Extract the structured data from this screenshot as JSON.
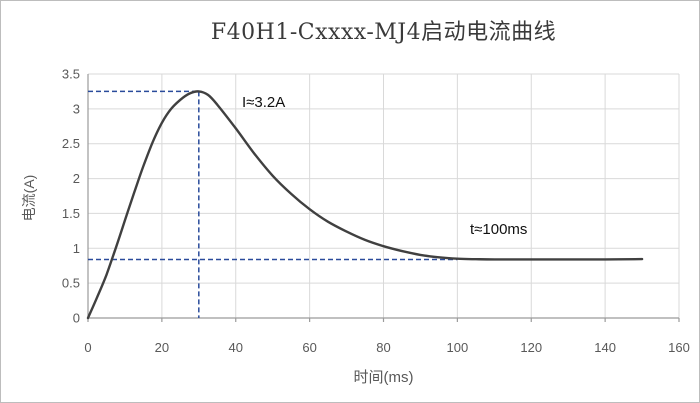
{
  "chart_data": {
    "type": "line",
    "title": "F40H1-Cxxxx-MJ4启动电流曲线",
    "xlabel": "时间(ms)",
    "ylabel": "电流(A)",
    "xlim": [
      0,
      160
    ],
    "ylim": [
      0,
      3.5
    ],
    "grid": true,
    "x_ticks": [
      0,
      20,
      40,
      60,
      80,
      100,
      120,
      140,
      160
    ],
    "x_tick_labels": [
      "0",
      "20",
      "40",
      "60",
      "80",
      "100",
      "120",
      "140",
      "160"
    ],
    "y_ticks": [
      0,
      0.5,
      1,
      1.5,
      2,
      2.5,
      3,
      3.5
    ],
    "y_tick_labels": [
      "0",
      "0.5",
      "1",
      "1.5",
      "2",
      "2.5",
      "3",
      "3.5"
    ],
    "series": [
      {
        "name": "startup-current-curve",
        "color": "#404040",
        "points": [
          [
            0,
            0
          ],
          [
            2.5,
            0.3
          ],
          [
            5,
            0.62
          ],
          [
            7.5,
            1.0
          ],
          [
            10,
            1.4
          ],
          [
            12.5,
            1.8
          ],
          [
            15,
            2.18
          ],
          [
            17.5,
            2.52
          ],
          [
            20,
            2.8
          ],
          [
            22.5,
            3.0
          ],
          [
            25,
            3.13
          ],
          [
            27.5,
            3.22
          ],
          [
            30,
            3.25
          ],
          [
            32.5,
            3.2
          ],
          [
            35,
            3.06
          ],
          [
            40,
            2.72
          ],
          [
            45,
            2.36
          ],
          [
            50,
            2.04
          ],
          [
            55,
            1.78
          ],
          [
            60,
            1.56
          ],
          [
            65,
            1.38
          ],
          [
            70,
            1.24
          ],
          [
            75,
            1.12
          ],
          [
            80,
            1.03
          ],
          [
            85,
            0.96
          ],
          [
            90,
            0.905
          ],
          [
            95,
            0.87
          ],
          [
            100,
            0.85
          ],
          [
            105,
            0.843
          ],
          [
            110,
            0.84
          ],
          [
            120,
            0.84
          ],
          [
            130,
            0.84
          ],
          [
            140,
            0.84
          ],
          [
            150,
            0.845
          ]
        ]
      }
    ],
    "reference_lines": {
      "peak_t": 30,
      "peak_value": 3.25,
      "steady_value": 0.84,
      "steady_t_end": 100
    },
    "annotations": [
      {
        "name": "peak-current-label",
        "text": "I≈3.2A"
      },
      {
        "name": "settle-time-label",
        "text": "t≈100ms"
      }
    ],
    "colors": {
      "curve": "#404040",
      "reference_dash": "#2a4b9b",
      "grid": "#d9d9d9",
      "axis": "#9b9b9b",
      "tick_text": "#595959",
      "title_text": "#3a3a3a",
      "annotation_text": "#111111",
      "background": "#ffffff",
      "border": "#bdbdbd"
    }
  }
}
